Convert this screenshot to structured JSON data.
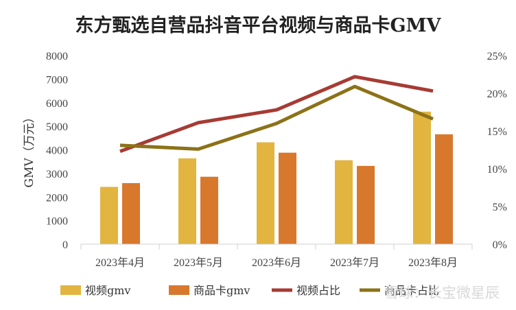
{
  "chart_data": {
    "type": "bar",
    "title": "东方甄选自营品抖音平台视频与商品卡GMV",
    "ylabel": "GMV（万元）",
    "categories": [
      "2023年4月",
      "2023年5月",
      "2023年6月",
      "2023年7月",
      "2023年8月"
    ],
    "ylim": [
      0,
      8000
    ],
    "yticks": [
      "0",
      "1000",
      "2000",
      "3000",
      "4000",
      "5000",
      "6000",
      "7000",
      "8000"
    ],
    "y2lim": [
      0,
      0.25
    ],
    "y2ticks": [
      "0%",
      "5%",
      "10%",
      "15%",
      "20%",
      "25%"
    ],
    "grid": false,
    "legend_position": "bottom",
    "series": [
      {
        "name": "视频gmv",
        "type": "bar",
        "axis": "left",
        "color": "#E1B540",
        "values": [
          2430,
          3640,
          4320,
          3560,
          5620
        ]
      },
      {
        "name": "商品卡gmv",
        "type": "bar",
        "axis": "left",
        "color": "#D8782D",
        "values": [
          2590,
          2860,
          3880,
          3320,
          4660
        ]
      },
      {
        "name": "视频占比",
        "type": "line",
        "axis": "right",
        "color": "#A73B34",
        "values": [
          0.123,
          0.161,
          0.178,
          0.222,
          0.203
        ]
      },
      {
        "name": "商品卡占比",
        "type": "line",
        "axis": "right",
        "color": "#8C7218",
        "values": [
          0.131,
          0.126,
          0.16,
          0.209,
          0.166
        ]
      }
    ]
  },
  "watermark": "雪球：长宝微星辰"
}
